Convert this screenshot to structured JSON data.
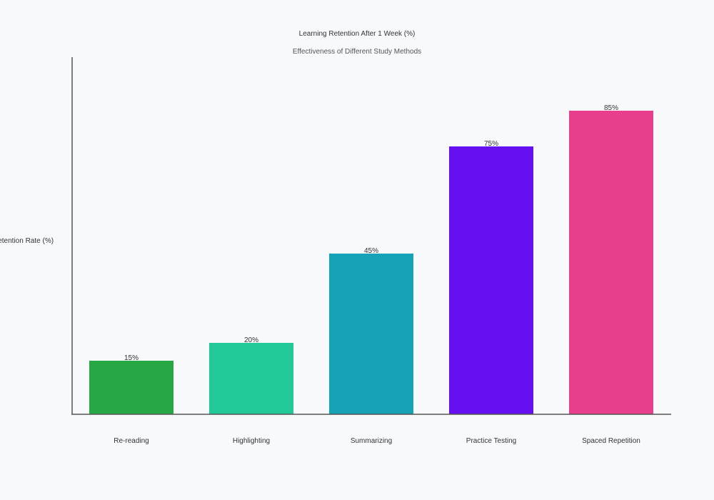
{
  "chart_data": {
    "type": "bar",
    "title": "Learning Retention After 1 Week (%)",
    "subtitle": "Effectiveness of Different Study Methods",
    "xlabel": "",
    "ylabel": "Retention Rate (%)",
    "ylim": [
      0,
      100
    ],
    "grid": false,
    "categories": [
      "Re-reading",
      "Highlighting",
      "Summarizing",
      "Practice Testing",
      "Spaced Repetition"
    ],
    "values": [
      15,
      20,
      45,
      75,
      85
    ],
    "data_labels": [
      "15%",
      "20%",
      "45%",
      "75%",
      "85%"
    ],
    "colors": [
      "#28a745",
      "#20c997",
      "#17a2b8",
      "#6610f2",
      "#e83e8c"
    ]
  }
}
